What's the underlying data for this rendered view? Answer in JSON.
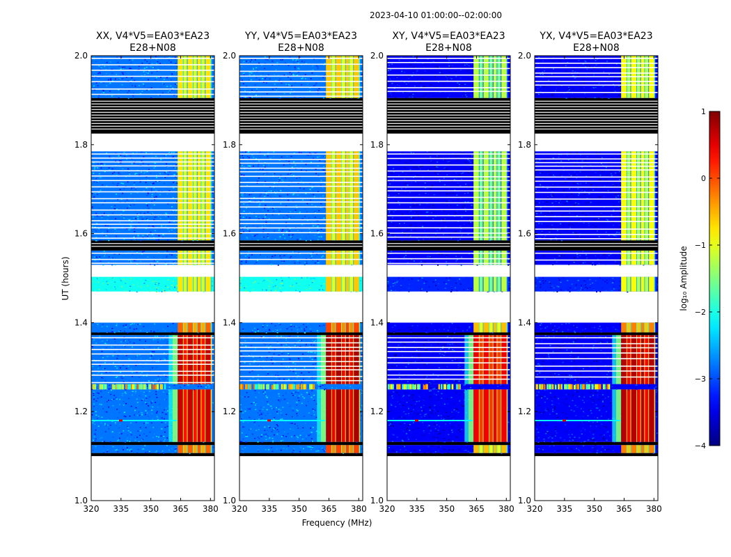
{
  "suptitle": "2023-04-10  01:00:00--02:00:00",
  "xlabel": "Frequency (MHz)",
  "ylabel": "UT (hours)",
  "colorbar_label": "log₁₀ Amplitude",
  "colorbar_ticks": [
    "1",
    "0",
    "−1",
    "−2",
    "−3",
    "−4"
  ],
  "chart_data": {
    "type": "heatmap",
    "colormap": "jet",
    "xlim": [
      320,
      382
    ],
    "ylim": [
      1.0,
      2.0
    ],
    "xticks": [
      320,
      335,
      350,
      365,
      380
    ],
    "yticks": [
      1.0,
      1.2,
      1.4,
      1.6,
      1.8,
      2.0
    ],
    "colorbar_range": [
      -4,
      1
    ],
    "panels": [
      {
        "title_line1": "XX, V4*V5=EA03*EA23",
        "title_line2": "E28+N08",
        "show_ylabel": true,
        "show_xlabel": false,
        "rfi_level": 0.0,
        "cross": false
      },
      {
        "title_line1": "YY, V4*V5=EA03*EA23",
        "title_line2": "E28+N08",
        "show_ylabel": false,
        "show_xlabel": true,
        "rfi_level": 0.15,
        "cross": false
      },
      {
        "title_line1": "XY, V4*V5=EA03*EA23",
        "title_line2": "E28+N08",
        "show_ylabel": false,
        "show_xlabel": false,
        "rfi_level": -0.2,
        "cross": true
      },
      {
        "title_line1": "YX, V4*V5=EA03*EA23",
        "title_line2": "E28+N08",
        "show_ylabel": false,
        "show_xlabel": false,
        "rfi_level": 0.1,
        "cross": true
      }
    ],
    "time_segments": [
      {
        "t0": 1.1,
        "t1": 1.107,
        "kind": "flag"
      },
      {
        "t0": 1.107,
        "t1": 1.125,
        "kind": "data",
        "rfi": "med"
      },
      {
        "t0": 1.125,
        "t1": 1.132,
        "kind": "flag"
      },
      {
        "t0": 1.132,
        "t1": 1.25,
        "kind": "data",
        "rfi": "strong",
        "note": "rfi line at 1.18"
      },
      {
        "t0": 1.25,
        "t1": 1.262,
        "kind": "noisy"
      },
      {
        "t0": 1.262,
        "t1": 1.372,
        "kind": "data",
        "rfi": "strong",
        "gaps": true
      },
      {
        "t0": 1.372,
        "t1": 1.378,
        "kind": "flag"
      },
      {
        "t0": 1.378,
        "t1": 1.4,
        "kind": "data",
        "rfi": "med"
      },
      {
        "t0": 1.4,
        "t1": 1.47,
        "kind": "gap"
      },
      {
        "t0": 1.47,
        "t1": 1.503,
        "kind": "data",
        "rfi": "light",
        "bright": true
      },
      {
        "t0": 1.503,
        "t1": 1.53,
        "kind": "gap"
      },
      {
        "t0": 1.53,
        "t1": 1.562,
        "kind": "data",
        "rfi": "light",
        "gaps": true
      },
      {
        "t0": 1.562,
        "t1": 1.585,
        "kind": "flag"
      },
      {
        "t0": 1.585,
        "t1": 1.785,
        "kind": "data",
        "rfi": "light",
        "gaps": true
      },
      {
        "t0": 1.785,
        "t1": 1.825,
        "kind": "gap"
      },
      {
        "t0": 1.825,
        "t1": 1.905,
        "kind": "flag"
      },
      {
        "t0": 1.905,
        "t1": 2.0,
        "kind": "data",
        "rfi": "light",
        "gaps": true
      }
    ]
  }
}
